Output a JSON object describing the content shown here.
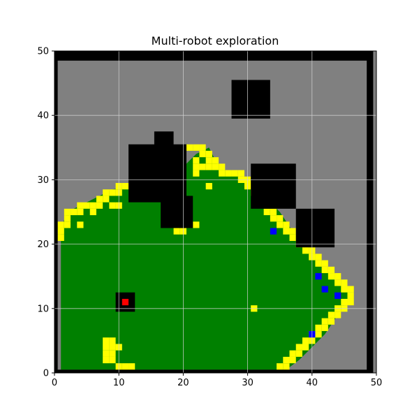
{
  "chart_data": {
    "type": "heatmap",
    "title": "Multi-robot exploration",
    "xlabel": "",
    "ylabel": "",
    "xlim": [
      0,
      50
    ],
    "ylim": [
      0,
      50
    ],
    "xticks": [
      0,
      10,
      20,
      30,
      40,
      50
    ],
    "yticks": [
      0,
      10,
      20,
      30,
      40,
      50
    ],
    "grid": true,
    "colors": {
      "unknown": "#808080",
      "obstacle": "#000000",
      "explored": "#008000",
      "frontier": "#ffff00",
      "robot": "#0000ff",
      "base": "#ff0000",
      "grid": "#d0d0d0"
    },
    "background": "unknown",
    "regions": [
      {
        "kind": "explored",
        "polygon": [
          [
            1,
            0.5
          ],
          [
            1,
            22.5
          ],
          [
            2,
            25
          ],
          [
            4,
            26
          ],
          [
            7,
            27.5
          ],
          [
            9,
            28.5
          ],
          [
            12,
            29
          ],
          [
            13,
            30
          ],
          [
            19,
            31
          ],
          [
            21,
            33
          ],
          [
            22,
            34
          ],
          [
            24,
            35
          ],
          [
            25,
            33
          ],
          [
            27,
            31
          ],
          [
            30,
            30
          ],
          [
            33,
            27
          ],
          [
            35,
            25
          ],
          [
            37,
            22
          ],
          [
            40,
            18
          ],
          [
            43,
            15
          ],
          [
            46,
            12
          ],
          [
            44,
            9
          ],
          [
            42,
            6
          ],
          [
            40,
            4
          ],
          [
            38,
            2
          ],
          [
            36,
            0.5
          ]
        ]
      }
    ],
    "rects": [
      {
        "kind": "obstacle",
        "x": [
          0,
          49
        ],
        "y": [
          48.5,
          50
        ]
      },
      {
        "kind": "obstacle",
        "x": [
          0,
          49
        ],
        "y": [
          0,
          0.5
        ]
      },
      {
        "kind": "obstacle",
        "x": [
          0,
          0.5
        ],
        "y": [
          0,
          50
        ]
      },
      {
        "kind": "obstacle",
        "x": [
          48.5,
          49.5
        ],
        "y": [
          0,
          50
        ]
      },
      {
        "kind": "obstacle",
        "x": [
          27.5,
          33.5
        ],
        "y": [
          39.5,
          45.5
        ]
      },
      {
        "kind": "obstacle",
        "x": [
          15.5,
          18.5
        ],
        "y": [
          34.5,
          37.5
        ]
      },
      {
        "kind": "obstacle",
        "x": [
          11.5,
          20.5
        ],
        "y": [
          26.5,
          35.5
        ]
      },
      {
        "kind": "obstacle",
        "x": [
          16.5,
          21.5
        ],
        "y": [
          22.5,
          27.5
        ]
      },
      {
        "kind": "obstacle",
        "x": [
          30.5,
          37.5
        ],
        "y": [
          25.5,
          32.5
        ]
      },
      {
        "kind": "obstacle",
        "x": [
          37.5,
          43.5
        ],
        "y": [
          19.5,
          25.5
        ]
      },
      {
        "kind": "obstacle",
        "x": [
          9.5,
          12.5
        ],
        "y": [
          9.5,
          12.5
        ]
      }
    ],
    "frontier_cells": [
      [
        1,
        21
      ],
      [
        1,
        22
      ],
      [
        1,
        23
      ],
      [
        2,
        23
      ],
      [
        2,
        24
      ],
      [
        2,
        25
      ],
      [
        3,
        25
      ],
      [
        4,
        25
      ],
      [
        4,
        26
      ],
      [
        5,
        26
      ],
      [
        6,
        26
      ],
      [
        6,
        25
      ],
      [
        7,
        26
      ],
      [
        7,
        27
      ],
      [
        8,
        27
      ],
      [
        8,
        28
      ],
      [
        9,
        28
      ],
      [
        10,
        28
      ],
      [
        10,
        29
      ],
      [
        11,
        29
      ],
      [
        9,
        26
      ],
      [
        10,
        26
      ],
      [
        4,
        23
      ],
      [
        21,
        35
      ],
      [
        22,
        35
      ],
      [
        23,
        35
      ],
      [
        23,
        34
      ],
      [
        24,
        34
      ],
      [
        24,
        33
      ],
      [
        25,
        33
      ],
      [
        25,
        32
      ],
      [
        26,
        32
      ],
      [
        26,
        31
      ],
      [
        27,
        31
      ],
      [
        28,
        31
      ],
      [
        29,
        31
      ],
      [
        29,
        30
      ],
      [
        30,
        30
      ],
      [
        30,
        29
      ],
      [
        31,
        29
      ],
      [
        31,
        28
      ],
      [
        32,
        28
      ],
      [
        32,
        27
      ],
      [
        22,
        33
      ],
      [
        22,
        32
      ],
      [
        23,
        32
      ],
      [
        24,
        32
      ],
      [
        22,
        31
      ],
      [
        24,
        29
      ],
      [
        33,
        25
      ],
      [
        34,
        25
      ],
      [
        34,
        24
      ],
      [
        35,
        24
      ],
      [
        35,
        23
      ],
      [
        36,
        23
      ],
      [
        36,
        22
      ],
      [
        37,
        22
      ],
      [
        37,
        21
      ],
      [
        38,
        21
      ],
      [
        38,
        20
      ],
      [
        39,
        20
      ],
      [
        39,
        19
      ],
      [
        40,
        19
      ],
      [
        40,
        18
      ],
      [
        41,
        18
      ],
      [
        41,
        17
      ],
      [
        42,
        17
      ],
      [
        42,
        16
      ],
      [
        43,
        16
      ],
      [
        43,
        15
      ],
      [
        44,
        15
      ],
      [
        44,
        14
      ],
      [
        45,
        14
      ],
      [
        45,
        13
      ],
      [
        46,
        13
      ],
      [
        46,
        12
      ],
      [
        46,
        11
      ],
      [
        45,
        11
      ],
      [
        45,
        10
      ],
      [
        44,
        10
      ],
      [
        44,
        9
      ],
      [
        43,
        9
      ],
      [
        43,
        8
      ],
      [
        42,
        8
      ],
      [
        42,
        7
      ],
      [
        41,
        7
      ],
      [
        41,
        6
      ],
      [
        40,
        6
      ],
      [
        40,
        5
      ],
      [
        39,
        5
      ],
      [
        39,
        4
      ],
      [
        38,
        4
      ],
      [
        38,
        3
      ],
      [
        37,
        3
      ],
      [
        37,
        2
      ],
      [
        36,
        2
      ],
      [
        36,
        1
      ],
      [
        35,
        1
      ],
      [
        19,
        22
      ],
      [
        20,
        22
      ],
      [
        22,
        23
      ],
      [
        31,
        10
      ],
      [
        8,
        5
      ],
      [
        9,
        5
      ],
      [
        8,
        4
      ],
      [
        9,
        4
      ],
      [
        10,
        4
      ],
      [
        8,
        3
      ],
      [
        9,
        3
      ],
      [
        8,
        2
      ],
      [
        9,
        2
      ],
      [
        10,
        1
      ],
      [
        11,
        1
      ],
      [
        12,
        1
      ]
    ],
    "robots": [
      [
        34,
        22
      ],
      [
        41,
        15
      ],
      [
        42,
        13
      ],
      [
        44,
        12
      ],
      [
        40,
        6
      ]
    ],
    "base": [
      11,
      11
    ]
  }
}
